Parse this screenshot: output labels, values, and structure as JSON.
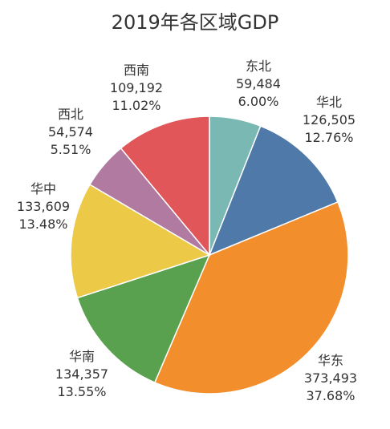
{
  "chart_data": {
    "type": "pie",
    "title": "2019年各区域GDP",
    "categories": [
      "东北",
      "华北",
      "华东",
      "华南",
      "华中",
      "西北",
      "西南"
    ],
    "values": [
      59484,
      126505,
      373493,
      134357,
      133609,
      54574,
      109192
    ],
    "value_labels": [
      "59,484",
      "126,505",
      "373,493",
      "134,357",
      "133,609",
      "54,574",
      "109,192"
    ],
    "percent_labels": [
      "6.00%",
      "12.76%",
      "37.68%",
      "13.55%",
      "13.48%",
      "5.51%",
      "11.02%"
    ],
    "colors": [
      "#7ab8b3",
      "#4f79a8",
      "#f28e2c",
      "#59a14f",
      "#edc948",
      "#b07aa1",
      "#e15759"
    ],
    "start_angle_deg": 0,
    "direction": "clockwise",
    "legend": "none",
    "data_labels": "outside"
  }
}
